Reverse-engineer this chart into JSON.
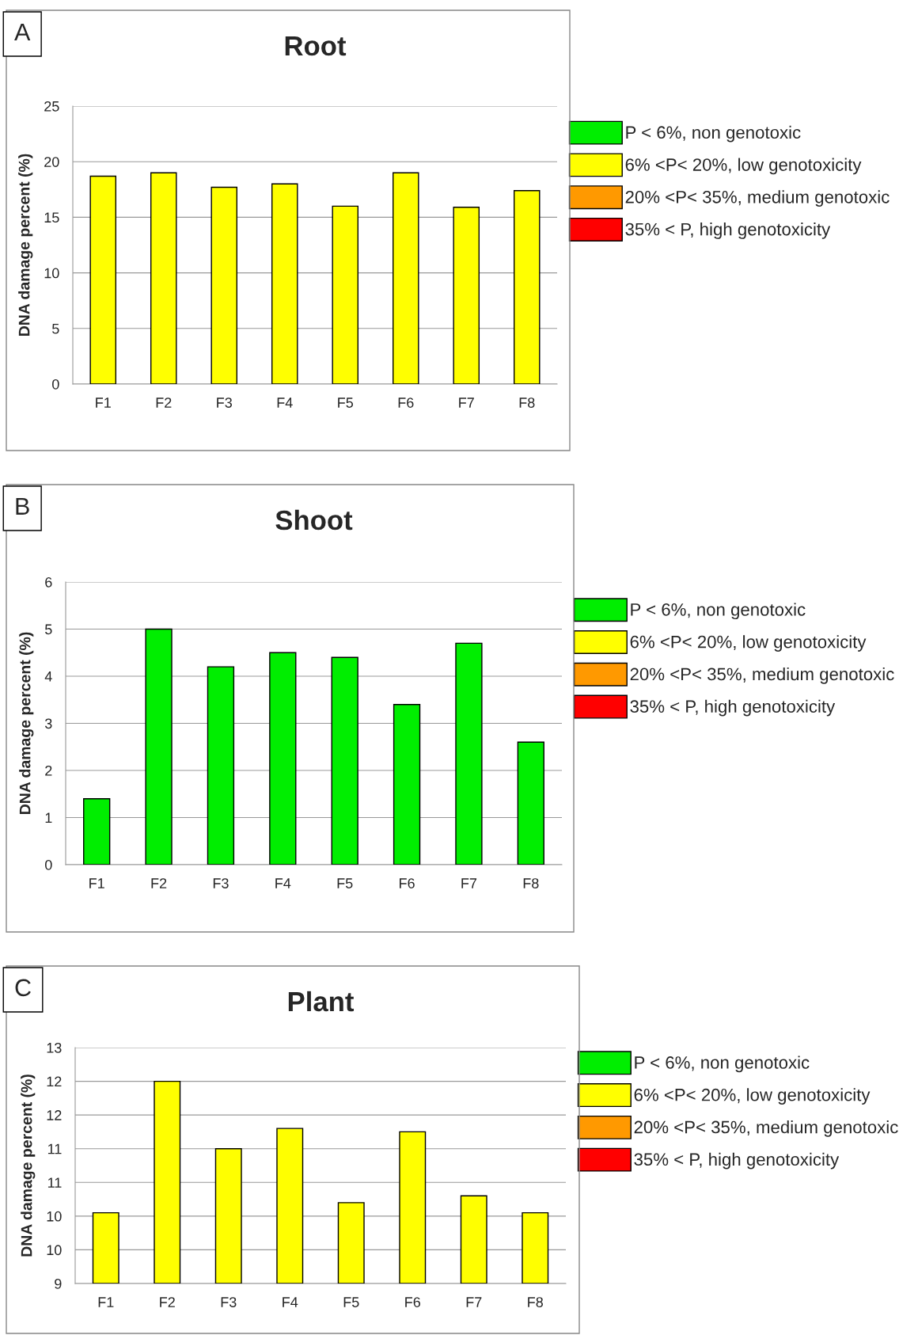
{
  "chart_data": [
    {
      "type": "bar",
      "title": "Root",
      "ylabel": "DNA damage percent (%)",
      "annotations": [
        "A"
      ],
      "categories": [
        "F1",
        "F2",
        "F3",
        "F4",
        "F5",
        "F6",
        "F7",
        "F8"
      ],
      "legend": "right",
      "grid": "y",
      "ylim": [
        0,
        25
      ],
      "yticks": [
        0,
        5,
        10,
        15,
        20,
        25
      ],
      "series": [
        {
          "name": "P < 6%, non genotoxic",
          "color": "#00ee00",
          "values": [
            null,
            null,
            null,
            null,
            null,
            null,
            null,
            null
          ]
        },
        {
          "name": "6% <P< 20%, low genotoxicity",
          "color": "#ffff00",
          "values": [
            18.7,
            19.0,
            17.7,
            18.0,
            16.0,
            19.0,
            15.9,
            17.4
          ]
        },
        {
          "name": "20% <P< 35%, medium genotoxic",
          "color": "#ff9900",
          "values": [
            null,
            null,
            null,
            null,
            null,
            null,
            null,
            null
          ]
        },
        {
          "name": "35% < P, high genotoxicity",
          "color": "#ff0000",
          "values": [
            null,
            null,
            null,
            null,
            null,
            null,
            null,
            null
          ]
        }
      ]
    },
    {
      "type": "bar",
      "title": "Shoot",
      "ylabel": "DNA damage percent (%)",
      "annotations": [
        "B"
      ],
      "categories": [
        "F1",
        "F2",
        "F3",
        "F4",
        "F5",
        "F6",
        "F7",
        "F8"
      ],
      "legend": "right",
      "grid": "y",
      "ylim": [
        0,
        6
      ],
      "yticks": [
        0,
        1,
        2,
        3,
        4,
        5,
        6
      ],
      "series": [
        {
          "name": "P < 6%, non genotoxic",
          "color": "#00ee00",
          "values": [
            1.4,
            5.0,
            4.2,
            4.5,
            4.4,
            3.4,
            4.7,
            2.6
          ]
        },
        {
          "name": "6% <P< 20%, low genotoxicity",
          "color": "#ffff00",
          "values": [
            null,
            null,
            null,
            null,
            null,
            null,
            null,
            null
          ]
        },
        {
          "name": "20% <P< 35%, medium genotoxic",
          "color": "#ff9900",
          "values": [
            null,
            null,
            null,
            null,
            null,
            null,
            null,
            null
          ]
        },
        {
          "name": "35% < P, high genotoxicity",
          "color": "#ff0000",
          "values": [
            null,
            null,
            null,
            null,
            null,
            null,
            null,
            null
          ]
        }
      ]
    },
    {
      "type": "bar",
      "title": "Plant",
      "ylabel": "DNA damage percent (%)",
      "annotations": [
        "C"
      ],
      "categories": [
        "F1",
        "F2",
        "F3",
        "F4",
        "F5",
        "F6",
        "F7",
        "F8"
      ],
      "legend": "right",
      "grid": "y",
      "ylim": [
        9,
        12.5
      ],
      "yticks": [
        9,
        {
          "value": 9.5,
          "label": "10"
        },
        10,
        {
          "value": 10.5,
          "label": "11"
        },
        11,
        {
          "value": 11.5,
          "label": "12"
        },
        12,
        {
          "value": 12.5,
          "label": "13"
        }
      ],
      "series": [
        {
          "name": "P < 6%, non genotoxic",
          "color": "#00ee00",
          "values": [
            null,
            null,
            null,
            null,
            null,
            null,
            null,
            null
          ]
        },
        {
          "name": "6% <P< 20%, low genotoxicity",
          "color": "#ffff00",
          "values": [
            10.05,
            12.0,
            11.0,
            11.3,
            10.2,
            11.25,
            10.3,
            10.05
          ]
        },
        {
          "name": "20% <P< 35%, medium genotoxic",
          "color": "#ff9900",
          "values": [
            null,
            null,
            null,
            null,
            null,
            null,
            null,
            null
          ]
        },
        {
          "name": "35% < P, high genotoxicity",
          "color": "#ff0000",
          "values": [
            null,
            null,
            null,
            null,
            null,
            null,
            null,
            null
          ]
        }
      ]
    }
  ]
}
